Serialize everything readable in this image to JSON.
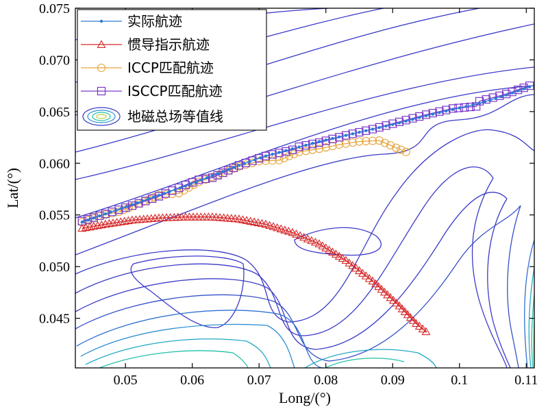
{
  "chart_data": {
    "type": "line",
    "title": "",
    "xlabel": "Long/(°)",
    "ylabel": "Lat/(°)",
    "xlim": [
      0.0425,
      0.1112
    ],
    "ylim": [
      0.0402,
      0.075
    ],
    "xticks": [
      0.05,
      0.06,
      0.07,
      0.08,
      0.09,
      0.1,
      0.11
    ],
    "xtick_labels": [
      "0.05",
      "0.06",
      "0.07",
      "0.08",
      "0.09",
      "0.1",
      "0.11"
    ],
    "yticks": [
      0.045,
      0.05,
      0.055,
      0.06,
      0.065,
      0.07,
      0.075
    ],
    "ytick_labels": [
      "0.045",
      "0.050",
      "0.055",
      "0.060",
      "0.065",
      "0.070",
      "0.075"
    ],
    "grid": false,
    "legend_position": "top-left",
    "colors": {
      "actual": "#2b7bd6",
      "ins": "#d62728",
      "iccp": "#e6a43c",
      "isccp": "#7a36c8"
    },
    "series": [
      {
        "name": "实际航迹",
        "marker": "dot",
        "x": [
          0.0435,
          0.047,
          0.051,
          0.055,
          0.059,
          0.063,
          0.067,
          0.071,
          0.075,
          0.079,
          0.083,
          0.087,
          0.091,
          0.095,
          0.099,
          0.103,
          0.107,
          0.1105
        ],
        "y": [
          0.0543,
          0.0551,
          0.056,
          0.0569,
          0.0578,
          0.0588,
          0.0598,
          0.0607,
          0.0614,
          0.0621,
          0.0627,
          0.0633,
          0.0639,
          0.0646,
          0.0652,
          0.0658,
          0.0666,
          0.0674
        ]
      },
      {
        "name": "惯导指示航迹",
        "marker": "triangle",
        "x": [
          0.0435,
          0.047,
          0.051,
          0.055,
          0.059,
          0.063,
          0.067,
          0.071,
          0.075,
          0.079,
          0.083,
          0.087,
          0.091,
          0.0935,
          0.095
        ],
        "y": [
          0.0537,
          0.0541,
          0.0545,
          0.0547,
          0.0548,
          0.0548,
          0.0546,
          0.0541,
          0.0533,
          0.0522,
          0.0506,
          0.0486,
          0.0462,
          0.0445,
          0.0437
        ]
      },
      {
        "name": "ICCP匹配航迹",
        "marker": "circle",
        "x": [
          0.0435,
          0.046,
          0.049,
          0.052,
          0.055,
          0.058,
          0.061,
          0.064,
          0.067,
          0.07,
          0.073,
          0.076,
          0.079,
          0.082,
          0.085,
          0.088,
          0.0905,
          0.092
        ],
        "y": [
          0.0543,
          0.0549,
          0.0553,
          0.0561,
          0.0569,
          0.0571,
          0.0582,
          0.0589,
          0.0597,
          0.0602,
          0.0603,
          0.0611,
          0.0614,
          0.0618,
          0.0621,
          0.0622,
          0.0615,
          0.0611
        ]
      },
      {
        "name": "ISCCP匹配航迹",
        "marker": "square",
        "x": [
          0.0435,
          0.047,
          0.051,
          0.055,
          0.059,
          0.061,
          0.063,
          0.067,
          0.071,
          0.075,
          0.076,
          0.079,
          0.083,
          0.087,
          0.091,
          0.095,
          0.099,
          0.1025,
          0.103,
          0.107,
          0.1105
        ],
        "y": [
          0.0544,
          0.0551,
          0.0559,
          0.0568,
          0.0579,
          0.0584,
          0.0586,
          0.0598,
          0.0607,
          0.0613,
          0.0616,
          0.062,
          0.0627,
          0.0633,
          0.064,
          0.0647,
          0.0653,
          0.0655,
          0.066,
          0.0667,
          0.0675
        ]
      }
    ],
    "contour_legend": "地磁总场等值线"
  }
}
